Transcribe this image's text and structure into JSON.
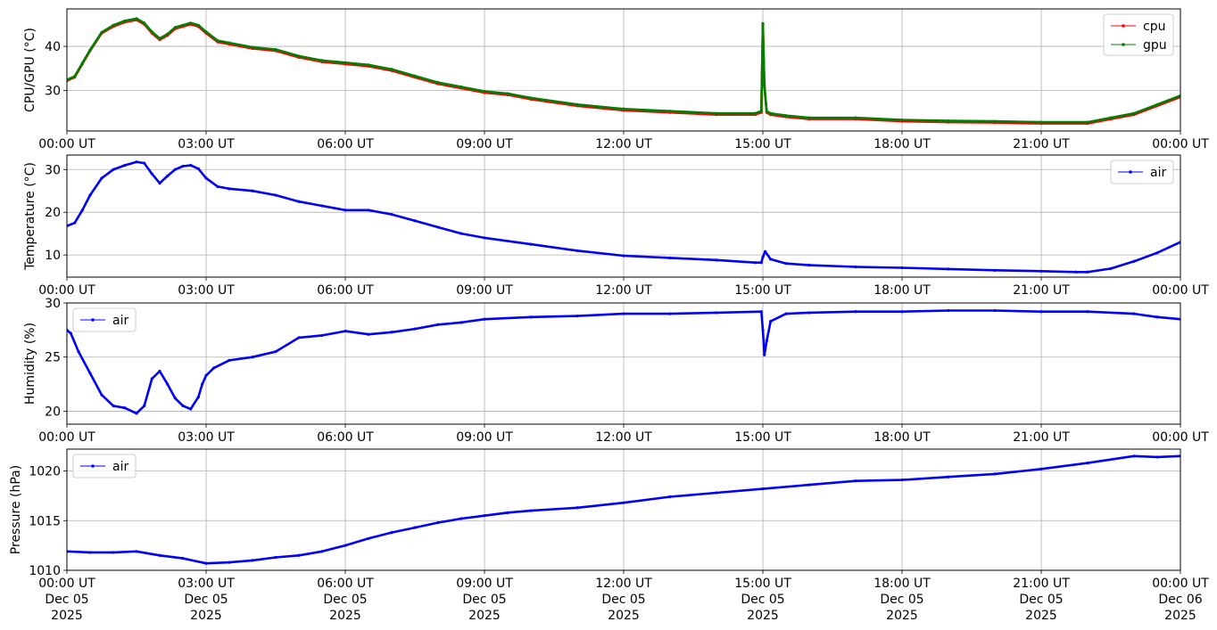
{
  "colors": {
    "cpu": "#ff0000",
    "gpu": "#008000",
    "air": "#0000ff",
    "grid": "#b0b0b0"
  },
  "x_ticks": {
    "labels": [
      "00:00 UT",
      "03:00 UT",
      "06:00 UT",
      "09:00 UT",
      "12:00 UT",
      "15:00 UT",
      "18:00 UT",
      "21:00 UT",
      "00:00 UT"
    ],
    "date_labels": [
      "Dec 05",
      "Dec 05",
      "Dec 05",
      "Dec 05",
      "Dec 05",
      "Dec 05",
      "Dec 05",
      "Dec 05",
      "Dec 06"
    ],
    "year_labels": [
      "2025",
      "2025",
      "2025",
      "2025",
      "2025",
      "2025",
      "2025",
      "2025",
      "2025"
    ]
  },
  "chart_data": [
    {
      "type": "line",
      "ylabel": "CPU/GPU (°C)",
      "xlim": [
        "2025-12-05 00:00",
        "2025-12-06 00:00"
      ],
      "ylim": [
        20.8,
        48.5
      ],
      "yticks": [
        30,
        40
      ],
      "ytick_labels": [
        "30",
        "40"
      ],
      "grid": true,
      "legend": "top-right",
      "x": [
        "00:00",
        "00:10",
        "00:20",
        "00:30",
        "00:45",
        "01:00",
        "01:15",
        "01:30",
        "01:40",
        "01:50",
        "02:00",
        "02:10",
        "02:20",
        "02:30",
        "02:40",
        "02:50",
        "03:00",
        "03:15",
        "03:30",
        "04:00",
        "04:30",
        "05:00",
        "05:30",
        "06:00",
        "06:30",
        "07:00",
        "07:30",
        "08:00",
        "08:30",
        "09:00",
        "09:30",
        "10:00",
        "11:00",
        "12:00",
        "13:00",
        "14:00",
        "14:50",
        "14:58",
        "15:00",
        "15:02",
        "15:05",
        "15:10",
        "15:30",
        "16:00",
        "17:00",
        "18:00",
        "19:00",
        "20:00",
        "21:00",
        "22:00",
        "22:30",
        "23:00",
        "23:30",
        "24:00"
      ],
      "series": [
        {
          "name": "cpu",
          "values": [
            32.2,
            33,
            36,
            39,
            43,
            44.5,
            45.5,
            46,
            45,
            43,
            41.5,
            42.5,
            44,
            44.5,
            45,
            44.5,
            43,
            41,
            40.5,
            39.5,
            39,
            37.5,
            36.5,
            36,
            35.5,
            34.5,
            33,
            31.5,
            30.5,
            29.5,
            29,
            28,
            26.5,
            25.5,
            25,
            24.5,
            24.5,
            25,
            45,
            31,
            25,
            24.5,
            24,
            23.5,
            23.5,
            23,
            22.8,
            22.7,
            22.5,
            22.5,
            23.5,
            24.5,
            26.5,
            28.5
          ]
        },
        {
          "name": "gpu",
          "values": [
            32.4,
            33.2,
            36.2,
            39.2,
            43.2,
            44.8,
            45.8,
            46.3,
            45.3,
            43.3,
            41.8,
            42.8,
            44.3,
            44.8,
            45.3,
            44.8,
            43.3,
            41.3,
            40.8,
            39.8,
            39.3,
            37.8,
            36.8,
            36.3,
            35.8,
            34.8,
            33.3,
            31.8,
            30.8,
            29.8,
            29.3,
            28.3,
            26.8,
            25.8,
            25.3,
            24.8,
            24.8,
            25.3,
            45.2,
            31.3,
            25.3,
            24.8,
            24.3,
            23.8,
            23.8,
            23.3,
            23.1,
            23,
            22.8,
            22.8,
            23.8,
            24.8,
            26.8,
            28.8
          ]
        }
      ]
    },
    {
      "type": "line",
      "ylabel": "Temperature (°C)",
      "xlim": [
        "2025-12-05 00:00",
        "2025-12-06 00:00"
      ],
      "ylim": [
        4.8,
        33.4
      ],
      "yticks": [
        10,
        20,
        30
      ],
      "ytick_labels": [
        "10",
        "20",
        "30"
      ],
      "grid": true,
      "legend": "top-right",
      "x": [
        "00:00",
        "00:10",
        "00:20",
        "00:30",
        "00:45",
        "01:00",
        "01:15",
        "01:30",
        "01:40",
        "01:50",
        "02:00",
        "02:10",
        "02:20",
        "02:30",
        "02:40",
        "02:50",
        "03:00",
        "03:15",
        "03:30",
        "04:00",
        "04:30",
        "05:00",
        "05:30",
        "06:00",
        "06:30",
        "07:00",
        "07:30",
        "08:00",
        "08:30",
        "09:00",
        "10:00",
        "11:00",
        "12:00",
        "13:00",
        "14:00",
        "14:50",
        "14:58",
        "15:00",
        "15:03",
        "15:10",
        "15:30",
        "16:00",
        "17:00",
        "18:00",
        "19:00",
        "20:00",
        "21:00",
        "21:45",
        "22:00",
        "22:30",
        "23:00",
        "23:30",
        "24:00"
      ],
      "series": [
        {
          "name": "air",
          "values": [
            16.8,
            17.5,
            20.5,
            24,
            28,
            30,
            31,
            31.8,
            31.5,
            29,
            26.8,
            28.5,
            30,
            30.8,
            31,
            30.2,
            28,
            26,
            25.5,
            25,
            24,
            22.5,
            21.5,
            20.5,
            20.5,
            19.5,
            18,
            16.5,
            15,
            14,
            12.5,
            11,
            9.8,
            9.3,
            8.8,
            8.2,
            8.2,
            9.5,
            10.8,
            9,
            8,
            7.6,
            7.2,
            7,
            6.7,
            6.4,
            6.2,
            6,
            6,
            6.8,
            8.5,
            10.5,
            13
          ]
        }
      ]
    },
    {
      "type": "line",
      "ylabel": "Humidity (%)",
      "xlim": [
        "2025-12-05 00:00",
        "2025-12-06 00:00"
      ],
      "ylim": [
        18.8,
        30.0
      ],
      "yticks": [
        20,
        25,
        30
      ],
      "ytick_labels": [
        "20",
        "25",
        "30"
      ],
      "grid": true,
      "legend": "top-left",
      "x": [
        "00:00",
        "00:05",
        "00:15",
        "00:30",
        "00:45",
        "01:00",
        "01:15",
        "01:30",
        "01:40",
        "01:50",
        "02:00",
        "02:10",
        "02:20",
        "02:30",
        "02:40",
        "02:50",
        "02:55",
        "03:00",
        "03:10",
        "03:30",
        "04:00",
        "04:30",
        "05:00",
        "05:30",
        "06:00",
        "06:30",
        "07:00",
        "07:30",
        "08:00",
        "08:30",
        "09:00",
        "10:00",
        "11:00",
        "12:00",
        "13:00",
        "14:00",
        "14:58",
        "15:00",
        "15:02",
        "15:05",
        "15:10",
        "15:30",
        "16:00",
        "17:00",
        "18:00",
        "19:00",
        "20:00",
        "21:00",
        "22:00",
        "23:00",
        "23:30",
        "24:00"
      ],
      "series": [
        {
          "name": "air",
          "values": [
            27.5,
            27.2,
            25.5,
            23.5,
            21.5,
            20.5,
            20.3,
            19.8,
            20.5,
            23,
            23.7,
            22.5,
            21.2,
            20.5,
            20.2,
            21.3,
            22.5,
            23.3,
            24,
            24.7,
            25,
            25.5,
            26.8,
            27,
            27.4,
            27.1,
            27.3,
            27.6,
            28,
            28.2,
            28.5,
            28.7,
            28.8,
            29,
            29,
            29.1,
            29.2,
            27.5,
            25.2,
            26.5,
            28.3,
            29,
            29.1,
            29.2,
            29.2,
            29.3,
            29.3,
            29.2,
            29.2,
            29,
            28.7,
            28.5
          ]
        }
      ]
    },
    {
      "type": "line",
      "ylabel": "Pressure (hPa)",
      "xlim": [
        "2025-12-05 00:00",
        "2025-12-06 00:00"
      ],
      "ylim": [
        1010.0,
        1022.2
      ],
      "yticks": [
        1010,
        1015,
        1020
      ],
      "ytick_labels": [
        "1010",
        "1015",
        "1020"
      ],
      "grid": true,
      "legend": "top-left",
      "x": [
        "00:00",
        "00:30",
        "01:00",
        "01:30",
        "02:00",
        "02:30",
        "03:00",
        "03:30",
        "04:00",
        "04:30",
        "05:00",
        "05:30",
        "06:00",
        "06:30",
        "07:00",
        "07:30",
        "08:00",
        "08:30",
        "09:00",
        "09:30",
        "10:00",
        "11:00",
        "12:00",
        "13:00",
        "14:00",
        "15:00",
        "16:00",
        "17:00",
        "18:00",
        "19:00",
        "20:00",
        "21:00",
        "22:00",
        "23:00",
        "23:30",
        "24:00"
      ],
      "series": [
        {
          "name": "air",
          "values": [
            1011.9,
            1011.8,
            1011.8,
            1011.9,
            1011.5,
            1011.2,
            1010.7,
            1010.8,
            1011,
            1011.3,
            1011.5,
            1011.9,
            1012.5,
            1013.2,
            1013.8,
            1014.3,
            1014.8,
            1015.2,
            1015.5,
            1015.8,
            1016,
            1016.3,
            1016.8,
            1017.4,
            1017.8,
            1018.2,
            1018.6,
            1019,
            1019.1,
            1019.4,
            1019.7,
            1020.2,
            1020.8,
            1021.5,
            1021.4,
            1021.5
          ]
        }
      ]
    }
  ]
}
